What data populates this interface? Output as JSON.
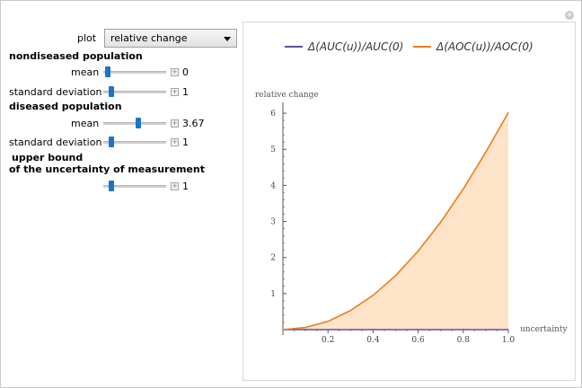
{
  "controls": {
    "plot_label": "plot",
    "plot_value": "relative change",
    "nondiseased_heading": "nondiseased population",
    "nondiseased_mean_label": "mean",
    "nondiseased_mean_value": "0",
    "nondiseased_mean_fraction": 0.03,
    "nondiseased_sd_label": "standard deviation",
    "nondiseased_sd_value": "1",
    "nondiseased_sd_fraction": 0.1,
    "diseased_heading": "diseased population",
    "diseased_mean_label": "mean",
    "diseased_mean_value": "3.67",
    "diseased_mean_fraction": 0.57,
    "diseased_sd_label": "standard deviation",
    "diseased_sd_value": "1",
    "diseased_sd_fraction": 0.1,
    "upper_bound_heading_line1": "upper bound",
    "upper_bound_heading_line2": "of the uncertainty of measurement",
    "upper_bound_value": "1",
    "upper_bound_fraction": 0.1
  },
  "colors": {
    "slider_thumb": "#1a74c9",
    "series_auc": "#5e4fa2",
    "series_aoc": "#e87d1e",
    "fill_aoc": "#fde3c7"
  },
  "icons": {
    "corner": "plus-circle-icon",
    "dropdown": "chevron-down-icon",
    "slider_increment": "plus-icon"
  },
  "chart_data": {
    "type": "area",
    "title": "",
    "xlabel": "uncertainty",
    "ylabel": "relative change",
    "xlim": [
      0,
      1.0
    ],
    "ylim": [
      0,
      6.3
    ],
    "grid": false,
    "legend_position": "top",
    "x_ticks": [
      "0.2",
      "0.4",
      "0.6",
      "0.8",
      "1.0"
    ],
    "y_ticks": [
      "1",
      "2",
      "3",
      "4",
      "5",
      "6"
    ],
    "x": [
      0.0,
      0.1,
      0.2,
      0.3,
      0.4,
      0.5,
      0.6,
      0.7,
      0.8,
      0.9,
      1.0
    ],
    "series": [
      {
        "name": "Δ(AUC(u))/AUC(0)",
        "values": [
          0,
          0,
          0,
          0,
          0,
          0,
          0,
          0,
          0,
          0,
          0
        ]
      },
      {
        "name": "Δ(AOC(u))/AOC(0)",
        "values": [
          0,
          0.06,
          0.23,
          0.53,
          0.95,
          1.5,
          2.18,
          2.98,
          3.9,
          4.92,
          6.02
        ]
      }
    ]
  }
}
